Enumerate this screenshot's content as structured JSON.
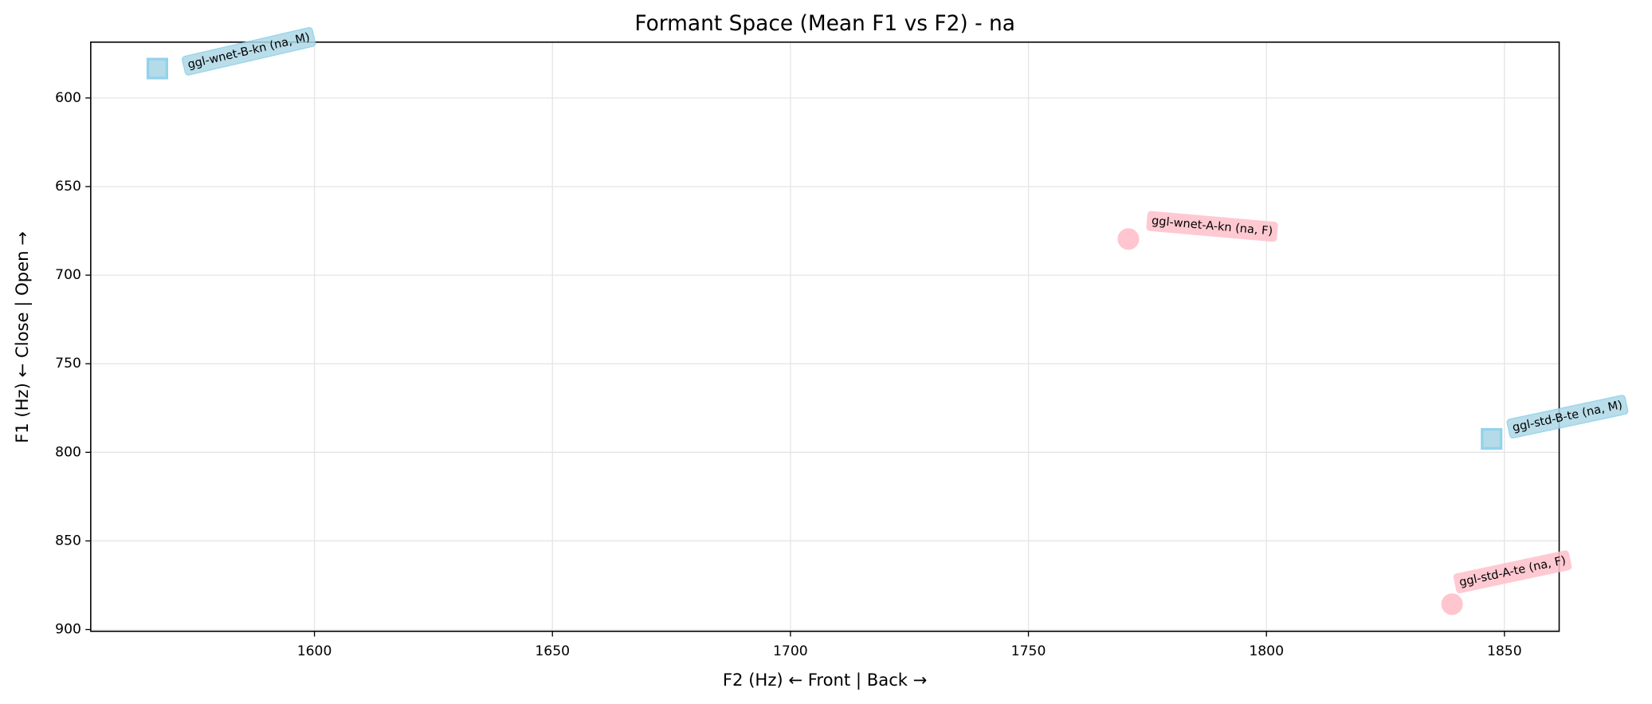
{
  "chart_data": {
    "type": "scatter",
    "title": "Formant Space (Mean F1 vs F2) - na",
    "x_label": "F2 (Hz) ← Front | Back →",
    "y_label": "F1 (Hz) ← Close | Open →",
    "xlim": [
      1553,
      1861.5
    ],
    "ylim": [
      901,
      568.5
    ],
    "y_inverted": true,
    "xticks": [
      1600,
      1650,
      1700,
      1750,
      1800,
      1850
    ],
    "yticks": [
      600,
      650,
      700,
      750,
      800,
      850,
      900
    ],
    "grid": true,
    "points": [
      {
        "label": "ggl-wnet-B-kn (na, M)",
        "x": 1567,
        "y": 583.4,
        "marker": "square",
        "color": "#add8e6",
        "edge_color": "#87ceeb"
      },
      {
        "label": "ggl-wnet-A-kn (na, F)",
        "x": 1771,
        "y": 679.6,
        "marker": "circle",
        "color": "#ffc0cb",
        "edge_color": "#ffc0cb"
      },
      {
        "label": "ggl-std-B-te (na, M)",
        "x": 1847.3,
        "y": 792.4,
        "marker": "square",
        "color": "#add8e6",
        "edge_color": "#87ceeb"
      },
      {
        "label": "ggl-std-A-te (na, F)",
        "x": 1839,
        "y": 885.7,
        "marker": "circle",
        "color": "#ffc0cb",
        "edge_color": "#ffc0cb"
      }
    ]
  }
}
